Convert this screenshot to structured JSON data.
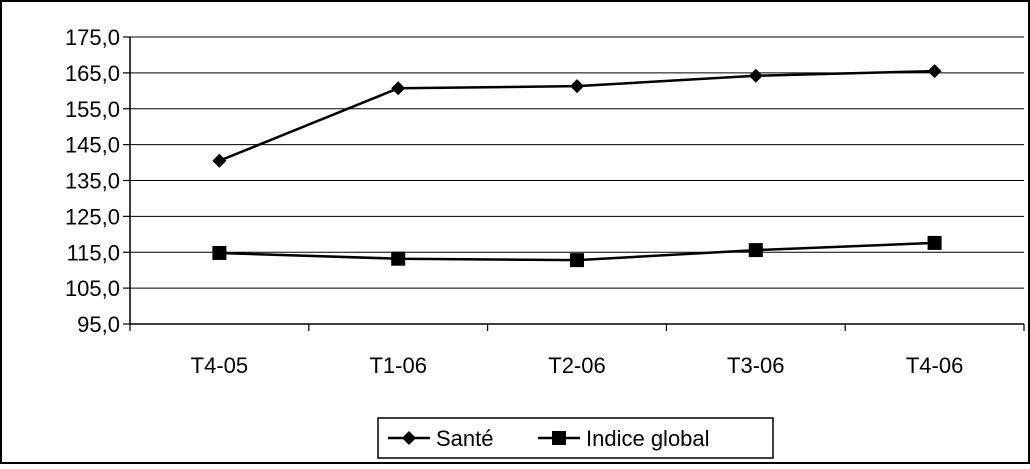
{
  "chart_data": {
    "type": "line",
    "categories": [
      "T4-05",
      "T1-06",
      "T2-06",
      "T3-06",
      "T4-06"
    ],
    "series": [
      {
        "name": "Santé",
        "marker": "diamond",
        "values": [
          140.5,
          160.7,
          161.3,
          164.2,
          165.5
        ]
      },
      {
        "name": "Indice global",
        "marker": "square",
        "values": [
          114.8,
          113.2,
          112.8,
          115.6,
          117.6
        ]
      }
    ],
    "ylim": [
      95,
      175
    ],
    "yticks": [
      "175,0",
      "165,0",
      "155,0",
      "145,0",
      "135,0",
      "125,0",
      "115,0",
      "105,0",
      "95,0"
    ],
    "ytick_values": [
      175,
      165,
      155,
      145,
      135,
      125,
      115,
      105,
      95
    ],
    "grid": true,
    "legend": "bottom-center",
    "line_color": "#000000"
  }
}
